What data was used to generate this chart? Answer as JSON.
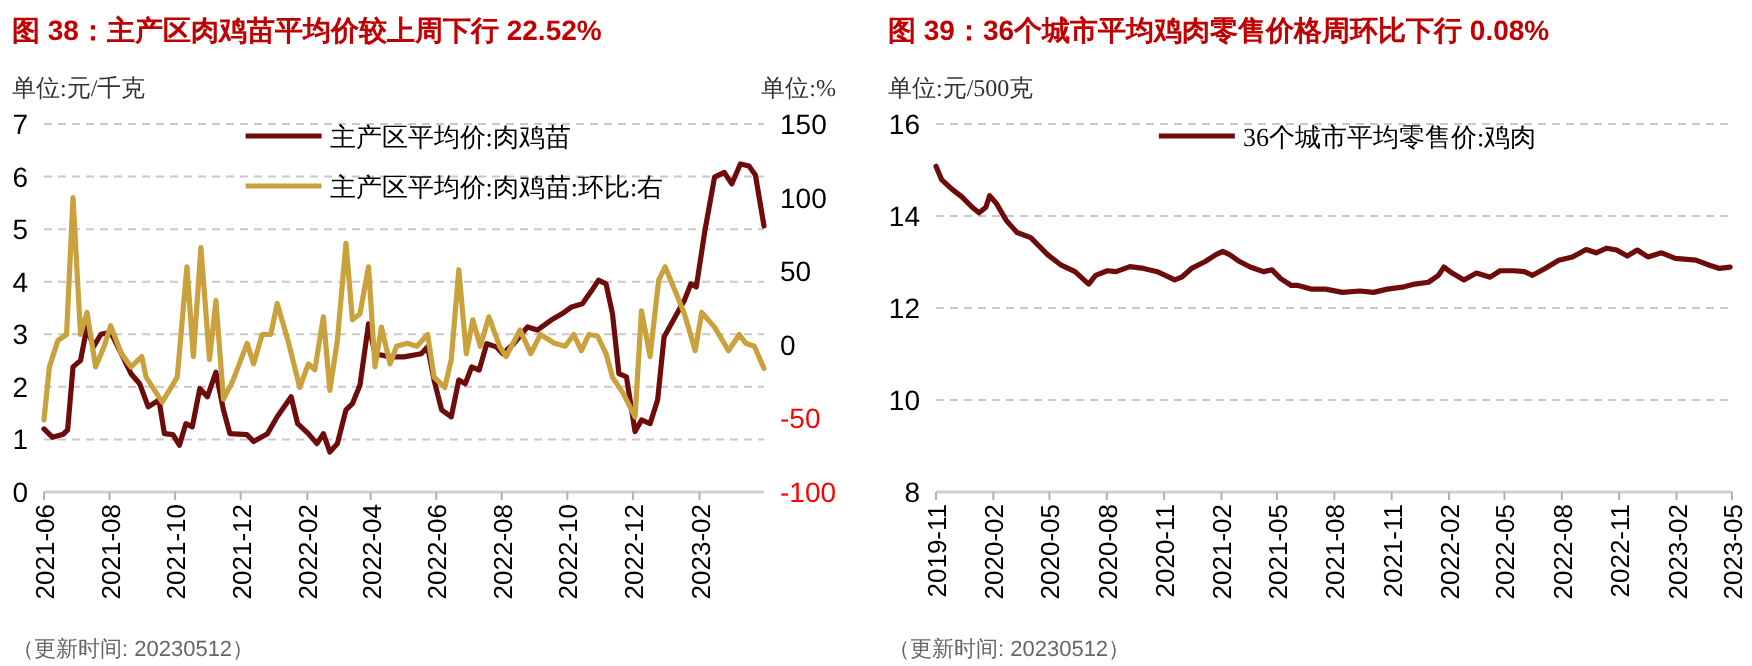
{
  "chart_data": [
    {
      "type": "line",
      "title": "图 38：主产区肉鸡苗平均价较上周下行 22.52%",
      "ylabel": "单位:元/千克",
      "y2label": "单位:%",
      "annotations": [
        "（更新时间: 20230512）"
      ],
      "legend": "top",
      "grid": "y",
      "line_style": "solid",
      "xlim": [
        "2021-06-01",
        "2023-04-02"
      ],
      "xticks": [
        {
          "value": "2021-06-01",
          "label": "2021-06"
        },
        {
          "value": "2021-08-01",
          "label": "2021-08"
        },
        {
          "value": "2021-10-01",
          "label": "2021-10"
        },
        {
          "value": "2021-12-01",
          "label": "2021-12"
        },
        {
          "value": "2022-02-01",
          "label": "2022-02"
        },
        {
          "value": "2022-04-01",
          "label": "2022-04"
        },
        {
          "value": "2022-06-01",
          "label": "2022-06"
        },
        {
          "value": "2022-08-01",
          "label": "2022-08"
        },
        {
          "value": "2022-10-01",
          "label": "2022-10"
        },
        {
          "value": "2022-12-01",
          "label": "2022-12"
        },
        {
          "value": "2023-02-01",
          "label": "2023-02"
        }
      ],
      "ylim": [
        0,
        7
      ],
      "yticks": [
        0,
        1,
        2,
        3,
        4,
        5,
        6,
        7
      ],
      "y2lim": [
        -100,
        150
      ],
      "y2ticks": [
        -100,
        -50,
        0,
        50,
        100,
        150
      ],
      "series": [
        {
          "name": "主产区平均价:肉鸡苗",
          "color": "#6e0b0b",
          "x": [
            "2021-06-01",
            "2021-06-09",
            "2021-06-19",
            "2021-06-23",
            "2021-06-28",
            "2021-07-05",
            "2021-07-11",
            "2021-07-17",
            "2021-07-24",
            "2021-08-02",
            "2021-08-12",
            "2021-08-21",
            "2021-08-29",
            "2021-09-06",
            "2021-09-16",
            "2021-09-21",
            "2021-09-29",
            "2021-10-05",
            "2021-10-11",
            "2021-10-17",
            "2021-10-24",
            "2021-10-31",
            "2021-11-08",
            "2021-11-15",
            "2021-11-21",
            "2021-12-07",
            "2021-12-13",
            "2021-12-26",
            "2022-01-04",
            "2022-01-17",
            "2022-01-23",
            "2022-02-02",
            "2022-02-10",
            "2022-02-16",
            "2022-02-22",
            "2022-03-01",
            "2022-03-09",
            "2022-03-15",
            "2022-03-22",
            "2022-03-30",
            "2022-04-05",
            "2022-04-19",
            "2022-05-02",
            "2022-05-18",
            "2022-05-24",
            "2022-05-30",
            "2022-06-06",
            "2022-06-15",
            "2022-06-22",
            "2022-06-28",
            "2022-07-04",
            "2022-07-11",
            "2022-07-18",
            "2022-07-27",
            "2022-08-02",
            "2022-08-12",
            "2022-08-25",
            "2022-09-03",
            "2022-09-16",
            "2022-09-26",
            "2022-10-05",
            "2022-10-15",
            "2022-10-24",
            "2022-10-30",
            "2022-11-06",
            "2022-11-12",
            "2022-11-18",
            "2022-11-25",
            "2022-12-03",
            "2022-12-09",
            "2022-12-17",
            "2022-12-24",
            "2022-12-30",
            "2023-01-09",
            "2023-01-18",
            "2023-01-24",
            "2023-01-29",
            "2023-02-06",
            "2023-02-15",
            "2023-02-24",
            "2023-03-03",
            "2023-03-11",
            "2023-03-19",
            "2023-03-25",
            "2023-04-02"
          ],
          "values": [
            1.2,
            1.04,
            1.1,
            1.18,
            2.38,
            2.5,
            3.14,
            2.76,
            3.0,
            3.04,
            2.63,
            2.25,
            2.06,
            1.62,
            1.75,
            1.11,
            1.09,
            0.89,
            1.3,
            1.24,
            1.97,
            1.81,
            2.28,
            1.56,
            1.11,
            1.09,
            0.96,
            1.11,
            1.43,
            1.81,
            1.3,
            1.11,
            0.92,
            1.11,
            0.76,
            0.92,
            1.56,
            1.68,
            2.03,
            3.2,
            2.63,
            2.57,
            2.57,
            2.63,
            2.76,
            2.13,
            1.56,
            1.43,
            2.13,
            2.06,
            2.38,
            2.32,
            2.82,
            2.76,
            2.63,
            2.82,
            3.14,
            3.08,
            3.27,
            3.39,
            3.52,
            3.58,
            3.84,
            4.03,
            3.96,
            3.39,
            2.25,
            2.19,
            1.15,
            1.37,
            1.3,
            1.75,
            2.95,
            3.32,
            3.65,
            3.96,
            3.9,
            4.97,
            5.99,
            6.08,
            5.86,
            6.24,
            6.2,
            6.03,
            5.06
          ]
        },
        {
          "name": "主产区平均价:肉鸡苗:环比:右",
          "color": "#c9a13d",
          "axis": "y2",
          "x": [
            "2021-06-01",
            "2021-06-06",
            "2021-06-14",
            "2021-06-22",
            "2021-06-28",
            "2021-07-05",
            "2021-07-11",
            "2021-07-19",
            "2021-07-27",
            "2021-08-02",
            "2021-08-12",
            "2021-08-21",
            "2021-08-31",
            "2021-09-04",
            "2021-09-19",
            "2021-10-03",
            "2021-10-12",
            "2021-10-18",
            "2021-10-25",
            "2021-11-02",
            "2021-11-08",
            "2021-11-15",
            "2021-11-24",
            "2021-12-07",
            "2021-12-13",
            "2021-12-21",
            "2021-12-29",
            "2022-01-04",
            "2022-01-14",
            "2022-01-25",
            "2022-02-02",
            "2022-02-08",
            "2022-02-16",
            "2022-02-22",
            "2022-03-01",
            "2022-03-09",
            "2022-03-15",
            "2022-03-22",
            "2022-03-30",
            "2022-04-05",
            "2022-04-11",
            "2022-04-19",
            "2022-04-25",
            "2022-05-05",
            "2022-05-14",
            "2022-05-24",
            "2022-05-30",
            "2022-06-09",
            "2022-06-15",
            "2022-06-22",
            "2022-06-29",
            "2022-07-05",
            "2022-07-12",
            "2022-07-20",
            "2022-07-30",
            "2022-08-05",
            "2022-08-18",
            "2022-08-28",
            "2022-09-06",
            "2022-09-19",
            "2022-09-29",
            "2022-10-07",
            "2022-10-14",
            "2022-10-21",
            "2022-10-29",
            "2022-11-06",
            "2022-11-12",
            "2022-11-22",
            "2022-12-03",
            "2022-12-09",
            "2022-12-17",
            "2022-12-25",
            "2022-12-31",
            "2023-01-09",
            "2023-01-18",
            "2023-01-28",
            "2023-02-03",
            "2023-02-15",
            "2023-02-28",
            "2023-03-10",
            "2023-03-16",
            "2023-03-24",
            "2023-04-02"
          ],
          "values": [
            -51,
            -15,
            3,
            7,
            100,
            7,
            22,
            -15,
            -1,
            13,
            -6,
            -15,
            -8,
            -22,
            -39,
            -22,
            53,
            -8,
            66,
            -10,
            30,
            -37,
            -24,
            1,
            -13,
            7,
            7,
            28,
            3,
            -29,
            -13,
            -17,
            19,
            -31,
            3,
            69,
            17,
            21,
            53,
            -15,
            12,
            -13,
            -1,
            1,
            -1,
            7,
            -22,
            -29,
            -10,
            51,
            -6,
            17,
            -1,
            19,
            -1,
            -8,
            10,
            -6,
            7,
            1,
            -1,
            7,
            -4,
            7,
            6,
            -6,
            -22,
            -33,
            -49,
            23,
            -8,
            44,
            53,
            37,
            21,
            -4,
            22,
            12,
            -4,
            7,
            1,
            -1,
            -16
          ]
        }
      ]
    },
    {
      "type": "line",
      "title": "图 39：36个城市平均鸡肉零售价格周环比下行 0.08%",
      "ylabel": "单位:元/500克",
      "annotations": [
        "（更新时间: 20230512）"
      ],
      "legend": "top",
      "grid": "y",
      "line_style": "solid",
      "xlim": [
        "2019-11-01",
        "2023-05-01"
      ],
      "xticks": [
        {
          "value": "2019-11-01",
          "label": "2019-11"
        },
        {
          "value": "2020-02-01",
          "label": "2020-02"
        },
        {
          "value": "2020-05-01",
          "label": "2020-05"
        },
        {
          "value": "2020-08-01",
          "label": "2020-08"
        },
        {
          "value": "2020-11-01",
          "label": "2020-11"
        },
        {
          "value": "2021-02-01",
          "label": "2021-02"
        },
        {
          "value": "2021-05-01",
          "label": "2021-05"
        },
        {
          "value": "2021-08-01",
          "label": "2021-08"
        },
        {
          "value": "2021-11-01",
          "label": "2021-11"
        },
        {
          "value": "2022-02-01",
          "label": "2022-02"
        },
        {
          "value": "2022-05-01",
          "label": "2022-05"
        },
        {
          "value": "2022-08-01",
          "label": "2022-08"
        },
        {
          "value": "2022-11-01",
          "label": "2022-11"
        },
        {
          "value": "2023-02-01",
          "label": "2023-02"
        },
        {
          "value": "2023-05-01",
          "label": "2023-05"
        }
      ],
      "ylim": [
        8,
        16
      ],
      "yticks": [
        8,
        10,
        12,
        14,
        16
      ],
      "series": [
        {
          "name": "36个城市平均零售价:鸡肉",
          "color": "#6e0b0b",
          "x": [
            "2019-11-01",
            "2019-11-10",
            "2019-11-26",
            "2019-12-13",
            "2019-12-29",
            "2020-01-09",
            "2020-01-20",
            "2020-01-26",
            "2020-02-06",
            "2020-02-22",
            "2020-03-10",
            "2020-04-01",
            "2020-04-28",
            "2020-05-20",
            "2020-06-11",
            "2020-07-03",
            "2020-07-14",
            "2020-08-02",
            "2020-08-16",
            "2020-09-07",
            "2020-09-29",
            "2020-10-21",
            "2020-11-18",
            "2020-11-29",
            "2020-12-15",
            "2021-01-06",
            "2021-01-23",
            "2021-02-03",
            "2021-02-14",
            "2021-03-02",
            "2021-03-19",
            "2021-04-10",
            "2021-04-23",
            "2021-05-07",
            "2021-05-24",
            "2021-06-04",
            "2021-06-26",
            "2021-07-18",
            "2021-08-14",
            "2021-09-11",
            "2021-10-03",
            "2021-10-25",
            "2021-11-21",
            "2021-12-08",
            "2021-12-30",
            "2022-01-15",
            "2022-01-24",
            "2022-02-06",
            "2022-02-25",
            "2022-03-17",
            "2022-04-08",
            "2022-04-24",
            "2022-05-16",
            "2022-06-02",
            "2022-06-15",
            "2022-07-05",
            "2022-07-27",
            "2022-08-18",
            "2022-09-09",
            "2022-09-25",
            "2022-10-12",
            "2022-10-28",
            "2022-11-14",
            "2022-11-30",
            "2022-12-17",
            "2023-01-08",
            "2023-01-30",
            "2023-03-04",
            "2023-03-26",
            "2023-04-11",
            "2023-04-28"
          ],
          "values": [
            15.08,
            14.79,
            14.59,
            14.41,
            14.19,
            14.07,
            14.19,
            14.44,
            14.27,
            13.9,
            13.64,
            13.53,
            13.16,
            12.93,
            12.79,
            12.52,
            12.71,
            12.81,
            12.79,
            12.9,
            12.86,
            12.79,
            12.61,
            12.67,
            12.86,
            13.01,
            13.16,
            13.23,
            13.16,
            13.01,
            12.89,
            12.79,
            12.83,
            12.64,
            12.49,
            12.49,
            12.41,
            12.41,
            12.34,
            12.37,
            12.34,
            12.41,
            12.46,
            12.52,
            12.56,
            12.71,
            12.89,
            12.76,
            12.61,
            12.76,
            12.67,
            12.81,
            12.81,
            12.79,
            12.71,
            12.86,
            13.04,
            13.11,
            13.27,
            13.2,
            13.3,
            13.26,
            13.13,
            13.26,
            13.11,
            13.2,
            13.08,
            13.04,
            12.93,
            12.86,
            12.89
          ]
        }
      ]
    }
  ]
}
